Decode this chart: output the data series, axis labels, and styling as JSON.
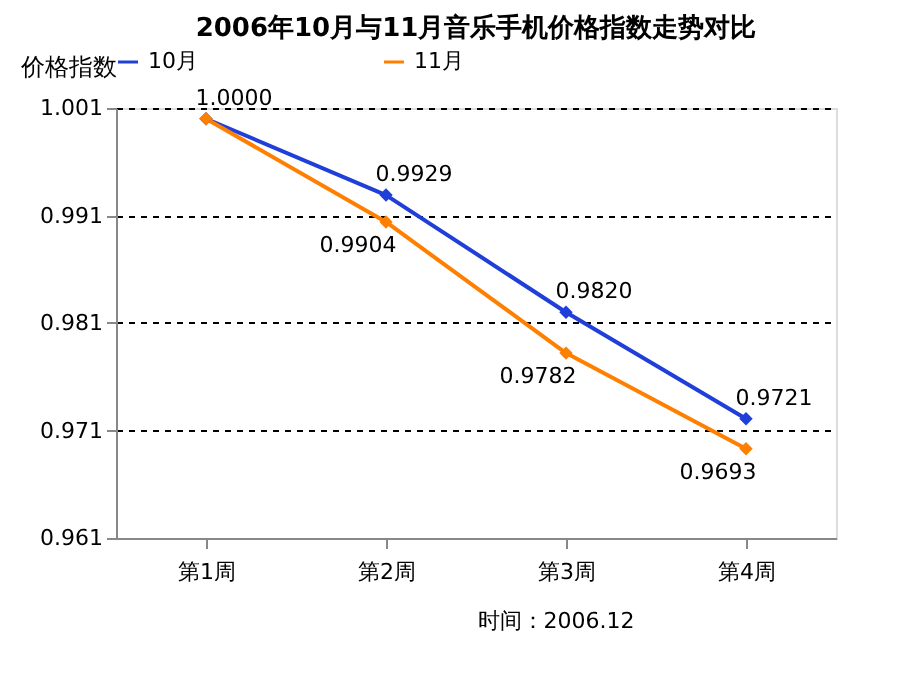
{
  "chart_data": {
    "type": "line",
    "title": "2006年10月与11月音乐手机价格指数走势对比",
    "ylabel": "价格指数",
    "categories": [
      "第1周",
      "第2周",
      "第3周",
      "第4周"
    ],
    "series": [
      {
        "name": "10月",
        "color": "#1f3fd8",
        "values": [
          1.0,
          0.9929,
          0.982,
          0.9721
        ],
        "value_labels": [
          "1.0000",
          "0.9929",
          "0.9820",
          "0.9721"
        ]
      },
      {
        "name": "11月",
        "color": "#ff7f00",
        "values": [
          1.0,
          0.9904,
          0.9782,
          0.9693
        ],
        "value_labels": [
          null,
          "0.9904",
          "0.9782",
          "0.9693"
        ]
      }
    ],
    "ylim": [
      0.961,
      1.001
    ],
    "yticks": [
      0.961,
      0.971,
      0.981,
      0.991,
      1.001
    ],
    "grid": "y",
    "legend": "top",
    "marker": "diamond",
    "line_style": "solid",
    "annotations": [
      "时间：2006.12"
    ]
  }
}
